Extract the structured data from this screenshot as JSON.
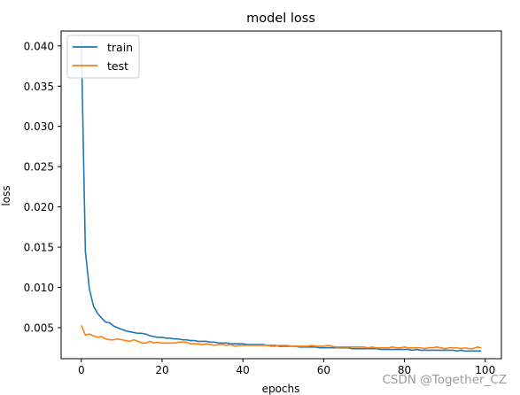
{
  "chart_data": {
    "type": "line",
    "title": "model loss",
    "xlabel": "epochs",
    "ylabel": "loss",
    "xlim": [
      -5.0,
      104.0
    ],
    "ylim": [
      0.00115,
      0.04185
    ],
    "x_ticks": [
      0,
      20,
      40,
      60,
      80,
      100
    ],
    "x_tick_labels": [
      "0",
      "20",
      "40",
      "60",
      "80",
      "100"
    ],
    "y_ticks": [
      0.005,
      0.01,
      0.015,
      0.02,
      0.025,
      0.03,
      0.035,
      0.04
    ],
    "y_tick_labels": [
      "0.005",
      "0.010",
      "0.015",
      "0.020",
      "0.025",
      "0.030",
      "0.035",
      "0.040"
    ],
    "grid": false,
    "legend_position": "top-left",
    "x": [
      0,
      1,
      2,
      3,
      4,
      5,
      6,
      7,
      8,
      9,
      10,
      11,
      12,
      13,
      14,
      15,
      16,
      17,
      18,
      19,
      20,
      21,
      22,
      23,
      24,
      25,
      26,
      27,
      28,
      29,
      30,
      31,
      32,
      33,
      34,
      35,
      36,
      37,
      38,
      39,
      40,
      41,
      42,
      43,
      44,
      45,
      46,
      47,
      48,
      49,
      50,
      51,
      52,
      53,
      54,
      55,
      56,
      57,
      58,
      59,
      60,
      61,
      62,
      63,
      64,
      65,
      66,
      67,
      68,
      69,
      70,
      71,
      72,
      73,
      74,
      75,
      76,
      77,
      78,
      79,
      80,
      81,
      82,
      83,
      84,
      85,
      86,
      87,
      88,
      89,
      90,
      91,
      92,
      93,
      94,
      95,
      96,
      97,
      98,
      99
    ],
    "series": [
      {
        "name": "train",
        "color": "#1f77b4",
        "values": [
          0.0405,
          0.0145,
          0.0098,
          0.0077,
          0.0068,
          0.0062,
          0.0057,
          0.0056,
          0.0052,
          0.005,
          0.0048,
          0.0046,
          0.0045,
          0.0044,
          0.0043,
          0.0043,
          0.0042,
          0.004,
          0.0039,
          0.0038,
          0.0038,
          0.0037,
          0.0037,
          0.0036,
          0.0036,
          0.0035,
          0.0035,
          0.0034,
          0.0034,
          0.0033,
          0.0033,
          0.0033,
          0.0032,
          0.0032,
          0.0031,
          0.0031,
          0.0031,
          0.003,
          0.003,
          0.003,
          0.003,
          0.0029,
          0.0029,
          0.0029,
          0.0029,
          0.0029,
          0.0028,
          0.0028,
          0.0028,
          0.0027,
          0.0027,
          0.0027,
          0.0027,
          0.0027,
          0.0026,
          0.0026,
          0.0026,
          0.0026,
          0.0026,
          0.0025,
          0.0025,
          0.0025,
          0.0025,
          0.0025,
          0.0025,
          0.0025,
          0.0025,
          0.0024,
          0.0024,
          0.0024,
          0.0024,
          0.0024,
          0.0024,
          0.0024,
          0.0023,
          0.0023,
          0.0023,
          0.0023,
          0.0023,
          0.0023,
          0.0023,
          0.0023,
          0.0022,
          0.0023,
          0.0022,
          0.0022,
          0.0022,
          0.0022,
          0.0022,
          0.0022,
          0.0022,
          0.0022,
          0.0022,
          0.0021,
          0.0022,
          0.0021,
          0.0021,
          0.0021,
          0.0021,
          0.0021
        ]
      },
      {
        "name": "test",
        "color": "#ff7f0e",
        "values": [
          0.0053,
          0.0041,
          0.0042,
          0.004,
          0.0038,
          0.0039,
          0.0036,
          0.0035,
          0.0035,
          0.0036,
          0.0035,
          0.0034,
          0.0033,
          0.0035,
          0.0033,
          0.0031,
          0.0031,
          0.0033,
          0.0031,
          0.0032,
          0.0031,
          0.0031,
          0.0031,
          0.0031,
          0.0032,
          0.0032,
          0.0032,
          0.003,
          0.003,
          0.003,
          0.0029,
          0.003,
          0.0029,
          0.0028,
          0.0029,
          0.0029,
          0.0028,
          0.0029,
          0.0027,
          0.0028,
          0.0028,
          0.0028,
          0.0028,
          0.0028,
          0.0028,
          0.0028,
          0.0028,
          0.0027,
          0.0027,
          0.0028,
          0.0028,
          0.0028,
          0.0027,
          0.0027,
          0.0027,
          0.0027,
          0.0027,
          0.0028,
          0.0027,
          0.0027,
          0.0027,
          0.0028,
          0.0027,
          0.0026,
          0.0026,
          0.0026,
          0.0026,
          0.0026,
          0.0026,
          0.0026,
          0.0026,
          0.0025,
          0.0026,
          0.0025,
          0.0025,
          0.0025,
          0.0025,
          0.0026,
          0.0025,
          0.0025,
          0.0026,
          0.0025,
          0.0025,
          0.0025,
          0.0025,
          0.0024,
          0.0025,
          0.0025,
          0.0026,
          0.0025,
          0.0024,
          0.0025,
          0.0025,
          0.0025,
          0.0024,
          0.0025,
          0.0024,
          0.0024,
          0.0026,
          0.0025
        ]
      }
    ]
  },
  "watermark": "CSDN @Together_CZ"
}
